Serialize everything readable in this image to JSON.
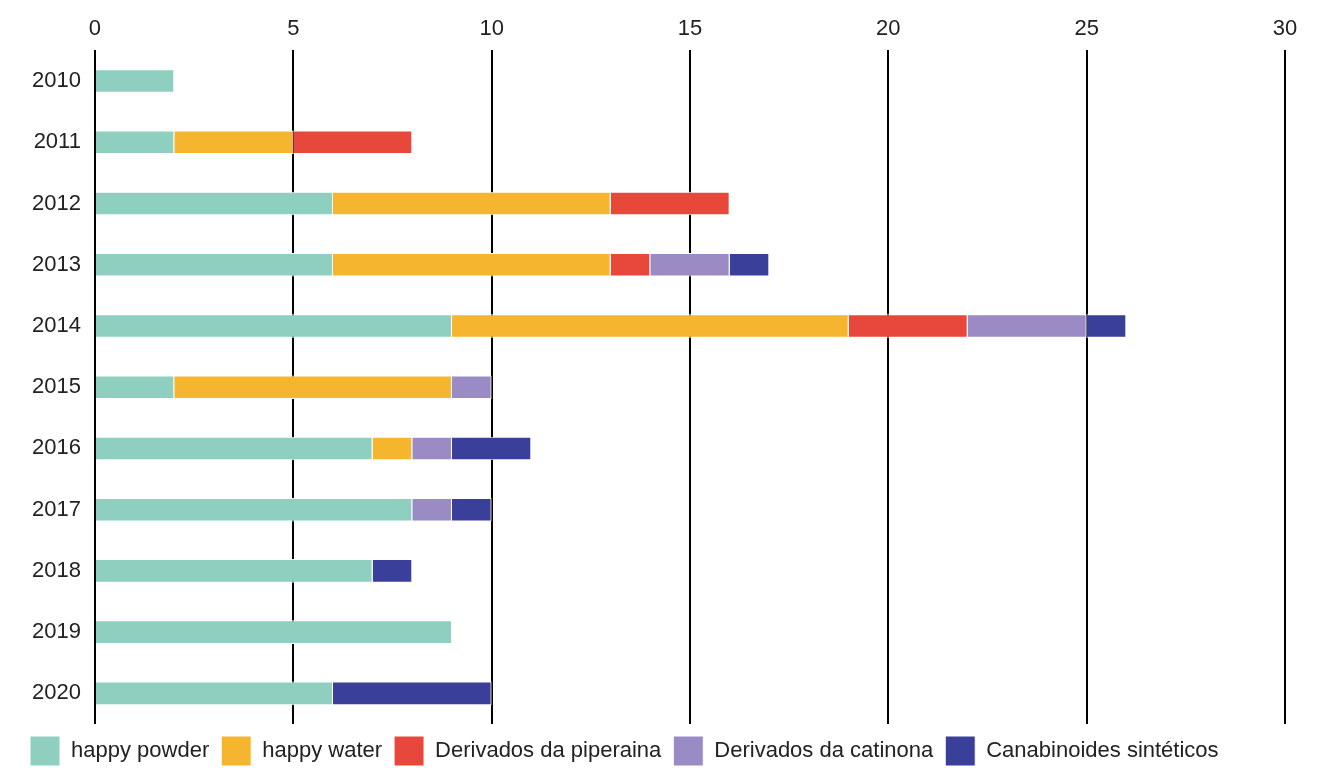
{
  "chart_data": {
    "type": "bar",
    "orientation": "horizontal",
    "stacked": true,
    "categories": [
      "2010",
      "2011",
      "2012",
      "2013",
      "2014",
      "2015",
      "2016",
      "2017",
      "2018",
      "2019",
      "2020"
    ],
    "series": [
      {
        "name": "happy powder",
        "color": "#8ecfc0",
        "values": [
          2,
          2,
          6,
          6,
          9,
          2,
          7,
          8,
          7,
          9,
          6
        ]
      },
      {
        "name": "happy water",
        "color": "#f5b52e",
        "values": [
          null,
          3,
          7,
          7,
          10,
          7,
          1,
          null,
          null,
          null,
          null
        ]
      },
      {
        "name": "Derivados da piperaina",
        "color": "#e8473b",
        "values": [
          null,
          3,
          3,
          1,
          3,
          null,
          null,
          null,
          null,
          null,
          null
        ]
      },
      {
        "name": "Derivados da catinona",
        "color": "#9a8bc4",
        "values": [
          null,
          null,
          null,
          2,
          3,
          1,
          1,
          1,
          null,
          null,
          null
        ]
      },
      {
        "name": "Canabinoides sintéticos",
        "color": "#3a3f9a",
        "values": [
          null,
          null,
          null,
          1,
          1,
          null,
          2,
          1,
          1,
          null,
          4
        ]
      }
    ],
    "xlim": [
      0,
      30
    ],
    "xticks": [
      0,
      5,
      10,
      15,
      20,
      25,
      30
    ],
    "grid": "x",
    "legend": "bottom"
  }
}
